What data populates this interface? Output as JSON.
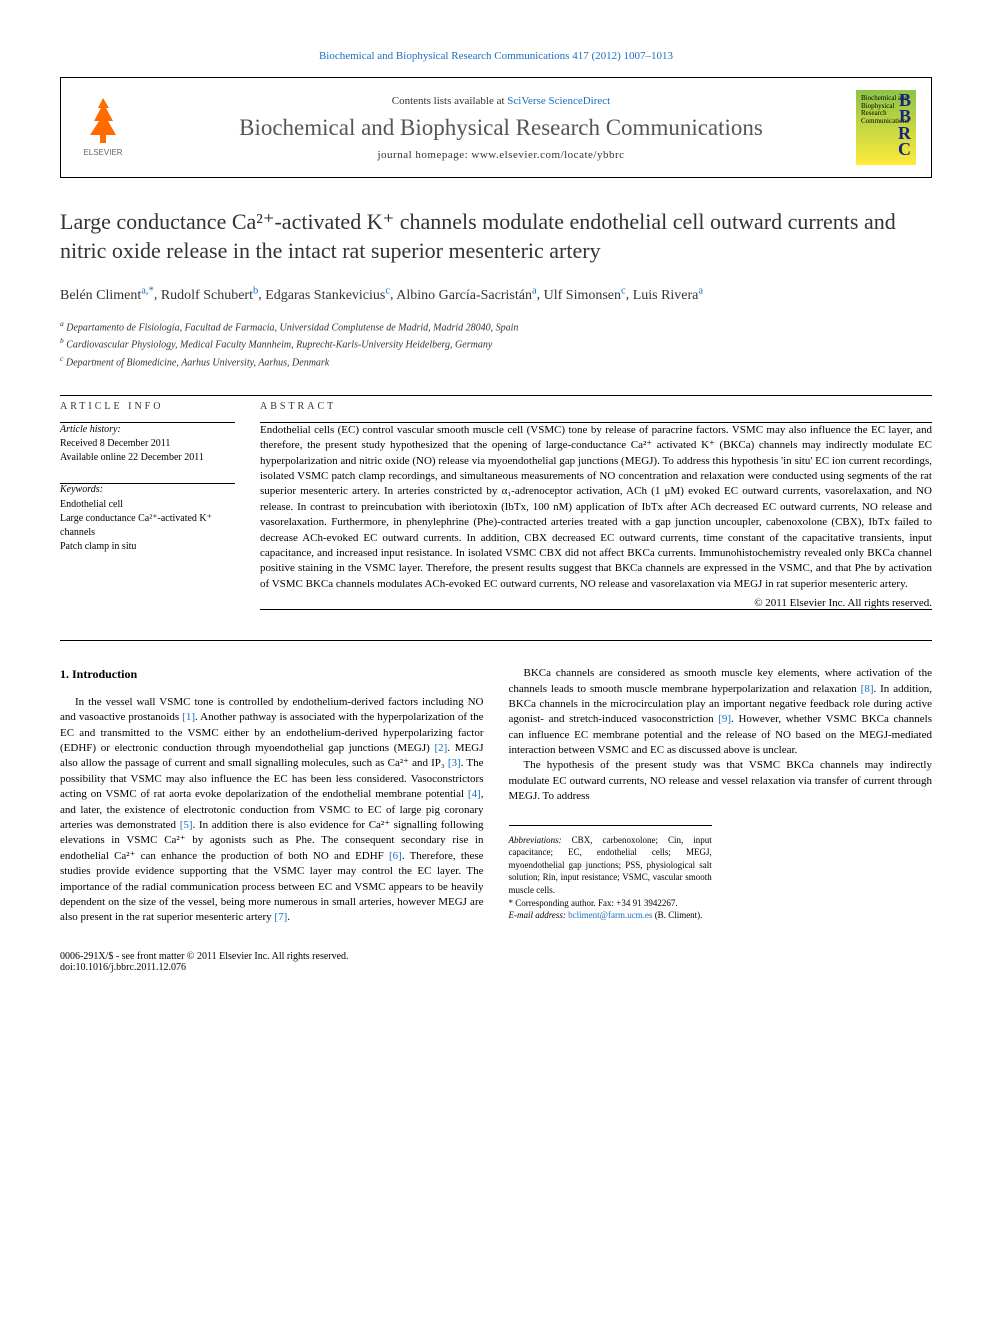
{
  "topLink": "Biochemical and Biophysical Research Communications 417 (2012) 1007–1013",
  "header": {
    "contentsText": "Contents lists available at ",
    "contentsLink": "SciVerse ScienceDirect",
    "journalName": "Biochemical and Biophysical Research Communications",
    "homepage": "journal homepage: www.elsevier.com/locate/ybbrc",
    "elsevierLabel": "ELSEVIER",
    "bbrcTop": "Biochemical and Biophysical Research Communications",
    "bbrcLetters": "B\nB\nR\nC"
  },
  "title": "Large conductance Ca²⁺-activated K⁺ channels modulate endothelial cell outward currents and nitric oxide release in the intact rat superior mesenteric artery",
  "authors": [
    {
      "name": "Belén Climent",
      "aff": "a,",
      "corr": "*"
    },
    {
      "name": "Rudolf Schubert",
      "aff": "b"
    },
    {
      "name": "Edgaras Stankevicius",
      "aff": "c"
    },
    {
      "name": "Albino García-Sacristán",
      "aff": "a"
    },
    {
      "name": "Ulf Simonsen",
      "aff": "c"
    },
    {
      "name": "Luis Rivera",
      "aff": "a"
    }
  ],
  "affiliations": [
    {
      "sup": "a",
      "text": "Departamento de Fisiología, Facultad de Farmacia, Universidad Complutense de Madrid, Madrid 28040, Spain"
    },
    {
      "sup": "b",
      "text": "Cardiovascular Physiology, Medical Faculty Mannheim, Ruprecht-Karls-University Heidelberg, Germany"
    },
    {
      "sup": "c",
      "text": "Department of Biomedicine, Aarhus University, Aarhus, Denmark"
    }
  ],
  "articleInfo": {
    "label": "ARTICLE INFO",
    "historyLabel": "Article history:",
    "received": "Received 8 December 2011",
    "available": "Available online 22 December 2011",
    "keywordsLabel": "Keywords:",
    "keywords": "Endothelial cell\nLarge conductance Ca²⁺-activated K⁺ channels\nPatch clamp in situ"
  },
  "abstract": {
    "label": "ABSTRACT",
    "text": "Endothelial cells (EC) control vascular smooth muscle cell (VSMC) tone by release of paracrine factors. VSMC may also influence the EC layer, and therefore, the present study hypothesized that the opening of large-conductance Ca²⁺ activated K⁺ (BKCa) channels may indirectly modulate EC hyperpolarization and nitric oxide (NO) release via myoendothelial gap junctions (MEGJ). To address this hypothesis 'in situ' EC ion current recordings, isolated VSMC patch clamp recordings, and simultaneous measurements of NO concentration and relaxation were conducted using segments of the rat superior mesenteric artery. In arteries constricted by α₁-adrenoceptor activation, ACh (1 μM) evoked EC outward currents, vasorelaxation, and NO release. In contrast to preincubation with iberiotoxin (IbTx, 100 nM) application of IbTx after ACh decreased EC outward currents, NO release and vasorelaxation. Furthermore, in phenylephrine (Phe)-contracted arteries treated with a gap junction uncoupler, cabenoxolone (CBX), IbTx failed to decrease ACh-evoked EC outward currents. In addition, CBX decreased EC outward currents, time constant of the capacitative transients, input capacitance, and increased input resistance. In isolated VSMC CBX did not affect BKCa currents. Immunohistochemistry revealed only BKCa channel positive staining in the VSMC layer. Therefore, the present results suggest that BKCa channels are expressed in the VSMC, and that Phe by activation of VSMC BKCa channels modulates ACh-evoked EC outward currents, NO release and vasorelaxation via MEGJ in rat superior mesenteric artery.",
    "copyright": "© 2011 Elsevier Inc. All rights reserved."
  },
  "intro": {
    "heading": "1. Introduction",
    "p1a": "In the vessel wall VSMC tone is controlled by endothelium-derived factors including NO and vasoactive prostanoids ",
    "r1": "[1]",
    "p1b": ". Another pathway is associated with the hyperpolarization of the EC and transmitted to the VSMC either by an endothelium-derived hyperpolarizing factor (EDHF) or electronic conduction through myoendothelial gap junctions (MEGJ) ",
    "r2": "[2]",
    "p1c": ". MEGJ also allow the passage of current and small signalling molecules, such as Ca²⁺ and IP₃ ",
    "r3": "[3]",
    "p1d": ". The possibility that VSMC may also influence the EC has been less considered. Vasoconstrictors acting on VSMC of rat aorta evoke depolarization of the endothelial membrane potential ",
    "r4": "[4]",
    "p1e": ", and later, the existence of electrotonic conduction from VSMC to EC of large pig coronary arteries was demonstrated ",
    "r5": "[5]",
    "p1f": ". In addition there",
    "p2a": "is also evidence for Ca²⁺ signalling following elevations in VSMC Ca²⁺ by agonists such as Phe. The consequent secondary rise in endothelial Ca²⁺ can enhance the production of both NO and EDHF ",
    "r6": "[6]",
    "p2b": ". Therefore, these studies provide evidence supporting that the VSMC layer may control the EC layer. The importance of the radial communication process between EC and VSMC appears to be heavily dependent on the size of the vessel, being more numerous in small arteries, however MEGJ are also present in the rat superior mesenteric artery ",
    "r7": "[7]",
    "p2c": ".",
    "p3a": "BKCa channels are considered as smooth muscle key elements, where activation of the channels leads to smooth muscle membrane hyperpolarization and relaxation ",
    "r8": "[8]",
    "p3b": ". In addition, BKCa channels in the microcirculation play an important negative feedback role during active agonist- and stretch-induced vasoconstriction ",
    "r9": "[9]",
    "p3c": ". However, whether VSMC BKCa channels can influence EC membrane potential and the release of NO based on the MEGJ-mediated interaction between VSMC and EC as discussed above is unclear.",
    "p4": "The hypothesis of the present study was that VSMC BKCa channels may indirectly modulate EC outward currents, NO release and vessel relaxation via transfer of current through MEGJ. To address"
  },
  "footer": {
    "abbrevLabel": "Abbreviations:",
    "abbrevText": " CBX, carbenoxolone; Cin, input capacitance; EC, endothelial cells; MEGJ, myoendothelial gap junctions; PSS, physiological salt solution; Rin, input resistance; VSMC, vascular smooth muscle cells.",
    "corrLabel": "* Corresponding author. Fax: +34 91 3942267.",
    "emailLabel": "E-mail address: ",
    "email": "bcliment@farm.ucm.es",
    "emailSuffix": " (B. Climent).",
    "issn": "0006-291X/$ - see front matter © 2011 Elsevier Inc. All rights reserved.",
    "doi": "doi:10.1016/j.bbrc.2011.12.076"
  },
  "colors": {
    "link": "#1a6ebf",
    "text": "#000000",
    "heading": "#333333",
    "elsevierOrange": "#ff6b00"
  }
}
